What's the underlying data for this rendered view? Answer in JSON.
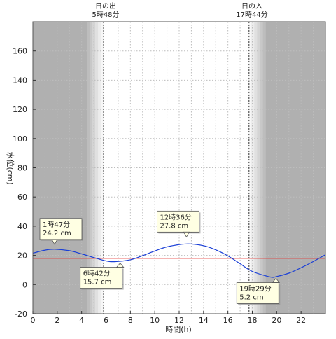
{
  "sun": {
    "sunrise_label": "日の出",
    "sunrise_time": "5時48分",
    "sunset_label": "日の入",
    "sunset_time": "17時44分"
  },
  "chart_data": {
    "type": "line",
    "xlabel": "時間(h)",
    "ylabel": "水位(cm)",
    "xlim": [
      0,
      24
    ],
    "ylim": [
      -20,
      180
    ],
    "x_ticks": [
      0,
      2,
      4,
      6,
      8,
      10,
      12,
      14,
      16,
      18,
      20,
      22
    ],
    "y_ticks": [
      -20,
      0,
      20,
      40,
      60,
      80,
      100,
      120,
      140,
      160
    ],
    "grid": true,
    "reference_line": {
      "y": 18,
      "color": "#e53935"
    },
    "sunrise_hour": 5.8,
    "sunset_hour": 17.73,
    "series": [
      {
        "color": "#1a3fd6",
        "x": [
          0,
          1,
          1.78,
          3,
          4,
          5,
          6,
          6.7,
          8,
          9,
          10,
          11,
          12.6,
          14,
          15,
          16,
          17,
          18,
          19.48,
          20,
          21,
          22,
          23,
          24
        ],
        "y": [
          21.5,
          23.6,
          24.2,
          23.2,
          21.0,
          18.5,
          16.2,
          15.7,
          17.0,
          19.8,
          23.0,
          25.8,
          27.8,
          26.6,
          23.8,
          19.6,
          14.3,
          9.0,
          5.2,
          5.5,
          7.8,
          11.5,
          15.8,
          20.5
        ]
      }
    ],
    "annotations": [
      {
        "hour": 1.78,
        "level": 24.2,
        "time": "1時47分",
        "value": "24.2 cm"
      },
      {
        "hour": 6.7,
        "level": 15.7,
        "time": "6時42分",
        "value": "15.7 cm"
      },
      {
        "hour": 12.6,
        "level": 27.8,
        "time": "12時36分",
        "value": "27.8 cm"
      },
      {
        "hour": 19.48,
        "level": 5.2,
        "time": "19時29分",
        "value": "5.2 cm"
      }
    ],
    "colors": {
      "night": "#b0b0b0",
      "day": "#ffffff",
      "grid": "#bdbdbd",
      "callout_fill": "#ffffe3"
    }
  }
}
